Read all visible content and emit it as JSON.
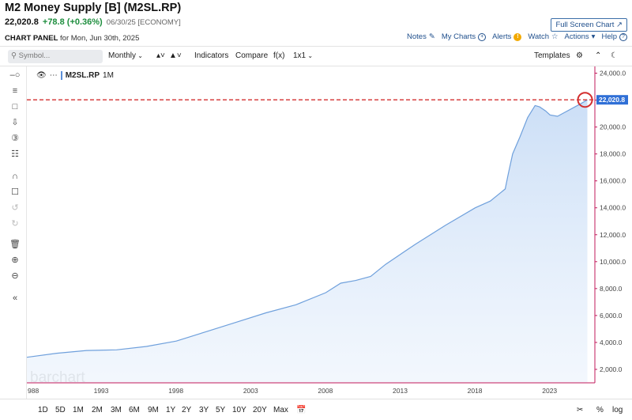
{
  "header": {
    "title": "M2 Money Supply [B] (M2SL.RP)",
    "last": "22,020.8",
    "change": "+78.8 (+0.36%)",
    "meta": "06/30/25 [ECONOMY]",
    "fullscreen_label": "Full Screen Chart",
    "panel_label": "CHART PANEL",
    "panel_date": "for Mon, Jun 30th, 2025",
    "links": {
      "notes": "Notes",
      "my_charts": "My Charts",
      "alerts": "Alerts",
      "watch": "Watch",
      "actions": "Actions",
      "help": "Help"
    }
  },
  "toolbar": {
    "search_placeholder": "Symbol...",
    "period": "Monthly",
    "indicators": "Indicators",
    "compare": "Compare",
    "fx": "f(x)",
    "layout": "1x1",
    "templates": "Templates"
  },
  "left_tools": [
    "crosshair-icon",
    "fib-icon",
    "rectangle-icon",
    "arrow-down-icon",
    "number-3-icon",
    "tree-icon",
    "magnet-icon",
    "unlock-icon",
    "undo-icon",
    "redo-icon",
    "trash-icon",
    "zoom-in-icon",
    "zoom-out-icon",
    "collapse-icon"
  ],
  "chart": {
    "series_label": "M2SL.RP",
    "interval": "1M",
    "watermark": "barchart",
    "last_label": "22,020.8",
    "accent": "#2f6fd6",
    "line_color": "#6fa0dc",
    "alert_line_color": "#d32f2f"
  },
  "chart_data": {
    "type": "area",
    "xlabel": "",
    "ylabel": "",
    "x_ticks": [
      "988",
      "1993",
      "1998",
      "2003",
      "2008",
      "2013",
      "2018",
      "2023"
    ],
    "y_ticks": [
      "2,000.0",
      "4,000.0",
      "6,000.0",
      "8,000.0",
      "10,000.0",
      "12,000.0",
      "14,000.0",
      "16,000.0",
      "18,000.0",
      "20,000.0",
      "22,000.0",
      "24,000.0"
    ],
    "ylim": [
      1000,
      24500
    ],
    "xlim": [
      1988.0,
      2026.0
    ],
    "alert_level": 22020.8,
    "x": [
      1988.0,
      1990.0,
      1992.0,
      1994.0,
      1996.0,
      1998.0,
      2000.0,
      2002.0,
      2004.0,
      2006.0,
      2008.0,
      2009.0,
      2010.0,
      2011.0,
      2012.0,
      2014.0,
      2016.0,
      2018.0,
      2019.0,
      2020.0,
      2020.2,
      2020.5,
      2021.0,
      2021.5,
      2022.0,
      2022.3,
      2022.7,
      2023.0,
      2023.5,
      2024.0,
      2024.5,
      2025.0,
      2025.5
    ],
    "y": [
      2900,
      3200,
      3400,
      3450,
      3700,
      4100,
      4800,
      5500,
      6200,
      6800,
      7700,
      8400,
      8600,
      8900,
      9800,
      11300,
      12700,
      14000,
      14500,
      15400,
      16500,
      18000,
      19300,
      20700,
      21600,
      21500,
      21200,
      20900,
      20800,
      21100,
      21400,
      21700,
      22020
    ]
  },
  "bottom": {
    "ranges": [
      "1D",
      "5D",
      "1M",
      "2M",
      "3M",
      "6M",
      "9M",
      "1Y",
      "2Y",
      "3Y",
      "5Y",
      "10Y",
      "20Y",
      "Max"
    ],
    "percent": "%",
    "log": "log"
  }
}
